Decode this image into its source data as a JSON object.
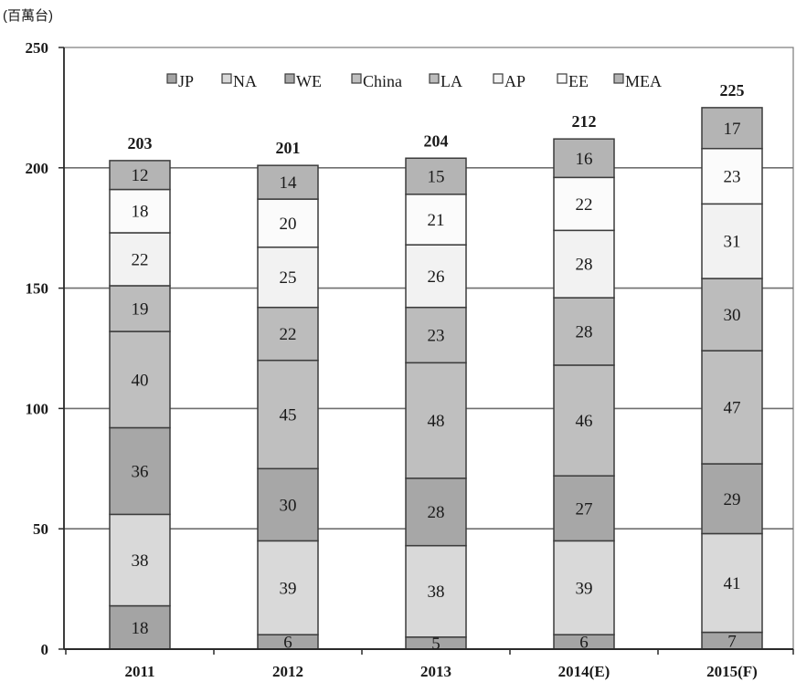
{
  "chart_data": {
    "type": "bar",
    "stacked": true,
    "ylabel": "(百萬台)",
    "xlabel": "",
    "ylim": [
      0,
      250
    ],
    "yticks": [
      0,
      50,
      100,
      150,
      200,
      250
    ],
    "grid": true,
    "legend": "top",
    "categories": [
      "2011",
      "2012",
      "2013",
      "2014(E)",
      "2015(F)"
    ],
    "totals": [
      203,
      201,
      204,
      212,
      225
    ],
    "series": [
      {
        "name": "JP",
        "color": "#a4a4a4",
        "values": [
          18,
          6,
          5,
          6,
          7
        ]
      },
      {
        "name": "NA",
        "color": "#d9d9d9",
        "values": [
          38,
          39,
          38,
          39,
          41
        ]
      },
      {
        "name": "WE",
        "color": "#a7a7a7",
        "values": [
          36,
          30,
          28,
          27,
          29
        ]
      },
      {
        "name": "China",
        "color": "#bfbfbf",
        "values": [
          40,
          45,
          48,
          46,
          47
        ]
      },
      {
        "name": "LA",
        "color": "#bcbcbc",
        "values": [
          19,
          22,
          23,
          28,
          30
        ]
      },
      {
        "name": "AP",
        "color": "#f2f2f2",
        "values": [
          22,
          25,
          26,
          28,
          31
        ]
      },
      {
        "name": "EE",
        "color": "#fbfbfb",
        "values": [
          18,
          20,
          21,
          22,
          23
        ]
      },
      {
        "name": "MEA",
        "color": "#b4b4b4",
        "values": [
          12,
          14,
          15,
          16,
          17
        ]
      }
    ]
  }
}
